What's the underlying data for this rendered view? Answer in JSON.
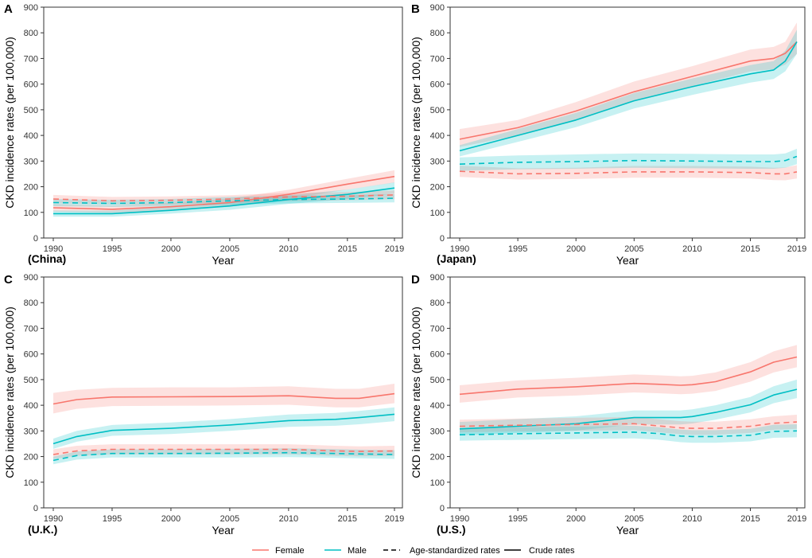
{
  "figure": {
    "y_axis_label": "CKD incidence rates (per 100,000)",
    "x_axis_label": "Year",
    "colors": {
      "female": "#F8766D",
      "male": "#00BFC4",
      "axis": "#333333"
    }
  },
  "legend": {
    "female": "Female",
    "male": "Male",
    "age_standardized": "Age-standardized rates",
    "crude": "Crude rates"
  },
  "chart_data": [
    {
      "type": "line",
      "panel": "A",
      "country": "(China)",
      "xlabel": "Year",
      "ylabel": "CKD incidence rates (per 100,000)",
      "xlim": [
        1990,
        2019
      ],
      "ylim": [
        0,
        900
      ],
      "x_ticks": [
        1990,
        1995,
        2000,
        2005,
        2010,
        2015,
        2019
      ],
      "y_ticks": [
        0,
        100,
        200,
        300,
        400,
        500,
        600,
        700,
        800,
        900
      ],
      "years": [
        1990,
        1995,
        2000,
        2005,
        2010,
        2015,
        2019
      ],
      "series": [
        {
          "name": "Female crude",
          "sex": "female",
          "rate": "crude",
          "values": [
            118,
            112,
            122,
            138,
            170,
            210,
            240
          ],
          "lower": [
            103,
            98,
            107,
            122,
            152,
            189,
            216
          ],
          "upper": [
            133,
            127,
            137,
            154,
            188,
            231,
            264
          ]
        },
        {
          "name": "Male crude",
          "sex": "male",
          "rate": "crude",
          "values": [
            95,
            95,
            108,
            125,
            150,
            170,
            195
          ],
          "lower": [
            83,
            83,
            95,
            110,
            133,
            151,
            173
          ],
          "upper": [
            107,
            107,
            121,
            140,
            167,
            189,
            217
          ]
        },
        {
          "name": "Female age-standardized",
          "sex": "female",
          "rate": "age-standardized",
          "values": [
            152,
            145,
            147,
            152,
            160,
            163,
            168
          ],
          "lower": [
            136,
            130,
            132,
            137,
            144,
            147,
            151
          ],
          "upper": [
            168,
            160,
            162,
            167,
            176,
            179,
            185
          ]
        },
        {
          "name": "Male age-standardized",
          "sex": "male",
          "rate": "age-standardized",
          "values": [
            138,
            135,
            138,
            145,
            150,
            152,
            155
          ],
          "lower": [
            124,
            121,
            124,
            130,
            135,
            137,
            139
          ],
          "upper": [
            152,
            149,
            152,
            160,
            165,
            167,
            171
          ]
        }
      ]
    },
    {
      "type": "line",
      "panel": "B",
      "country": "(Japan)",
      "xlabel": "Year",
      "ylabel": "CKD incidence rates (per 100,000)",
      "xlim": [
        1990,
        2019
      ],
      "ylim": [
        0,
        900
      ],
      "x_ticks": [
        1990,
        1995,
        2000,
        2005,
        2010,
        2015,
        2019
      ],
      "y_ticks": [
        0,
        100,
        200,
        300,
        400,
        500,
        600,
        700,
        800,
        900
      ],
      "years": [
        1990,
        1995,
        2000,
        2005,
        2010,
        2015,
        2017,
        2018,
        2019
      ],
      "series": [
        {
          "name": "Female crude",
          "sex": "female",
          "rate": "crude",
          "values": [
            385,
            430,
            495,
            570,
            630,
            690,
            700,
            720,
            765
          ],
          "lower": [
            355,
            400,
            462,
            535,
            592,
            650,
            658,
            676,
            718
          ],
          "upper": [
            425,
            460,
            530,
            610,
            670,
            735,
            745,
            765,
            840
          ]
        },
        {
          "name": "Male crude",
          "sex": "male",
          "rate": "crude",
          "values": [
            340,
            400,
            460,
            535,
            590,
            640,
            655,
            690,
            765
          ],
          "lower": [
            318,
            375,
            432,
            505,
            558,
            606,
            620,
            650,
            718
          ],
          "upper": [
            362,
            425,
            488,
            565,
            622,
            674,
            690,
            730,
            812
          ]
        },
        {
          "name": "Female age-standardized",
          "sex": "female",
          "rate": "age-standardized",
          "values": [
            260,
            250,
            252,
            258,
            258,
            255,
            250,
            250,
            258
          ],
          "lower": [
            238,
            228,
            230,
            235,
            235,
            232,
            226,
            225,
            232
          ],
          "upper": [
            282,
            272,
            274,
            281,
            281,
            278,
            274,
            275,
            284
          ]
        },
        {
          "name": "Male age-standardized",
          "sex": "male",
          "rate": "age-standardized",
          "values": [
            288,
            295,
            298,
            302,
            300,
            298,
            298,
            302,
            318
          ],
          "lower": [
            262,
            268,
            270,
            274,
            272,
            270,
            270,
            274,
            288
          ],
          "upper": [
            314,
            322,
            326,
            330,
            328,
            326,
            326,
            330,
            348
          ]
        }
      ]
    },
    {
      "type": "line",
      "panel": "C",
      "country": "(U.K.)",
      "xlabel": "Year",
      "ylabel": "CKD incidence rates (per 100,000)",
      "xlim": [
        1990,
        2019
      ],
      "ylim": [
        0,
        900
      ],
      "x_ticks": [
        1990,
        1995,
        2000,
        2005,
        2010,
        2015,
        2019
      ],
      "y_ticks": [
        0,
        100,
        200,
        300,
        400,
        500,
        600,
        700,
        800,
        900
      ],
      "years": [
        1990,
        1992,
        1995,
        2000,
        2005,
        2010,
        2014,
        2016,
        2019
      ],
      "series": [
        {
          "name": "Female crude",
          "sex": "female",
          "rate": "crude",
          "values": [
            405,
            422,
            432,
            433,
            434,
            437,
            427,
            427,
            445
          ],
          "lower": [
            368,
            386,
            397,
            398,
            399,
            402,
            392,
            392,
            408
          ],
          "upper": [
            448,
            460,
            468,
            470,
            470,
            474,
            464,
            464,
            484
          ]
        },
        {
          "name": "Male crude",
          "sex": "male",
          "rate": "crude",
          "values": [
            250,
            278,
            302,
            310,
            323,
            340,
            345,
            352,
            365
          ],
          "lower": [
            230,
            258,
            281,
            288,
            300,
            316,
            320,
            326,
            338
          ],
          "upper": [
            270,
            300,
            323,
            333,
            346,
            364,
            370,
            378,
            392
          ]
        },
        {
          "name": "Female age-standardized",
          "sex": "female",
          "rate": "age-standardized",
          "values": [
            208,
            222,
            228,
            228,
            228,
            228,
            222,
            220,
            222
          ],
          "lower": [
            190,
            203,
            209,
            209,
            209,
            209,
            203,
            201,
            203
          ],
          "upper": [
            228,
            242,
            248,
            248,
            248,
            248,
            242,
            240,
            242
          ]
        },
        {
          "name": "Male age-standardized",
          "sex": "male",
          "rate": "age-standardized",
          "values": [
            185,
            204,
            212,
            212,
            213,
            215,
            212,
            210,
            208
          ],
          "lower": [
            170,
            188,
            196,
            196,
            196,
            198,
            195,
            193,
            191
          ],
          "upper": [
            200,
            220,
            228,
            228,
            230,
            232,
            229,
            227,
            225
          ]
        }
      ]
    },
    {
      "type": "line",
      "panel": "D",
      "country": "(U.S.)",
      "xlabel": "Year",
      "ylabel": "CKD incidence rates (per 100,000)",
      "xlim": [
        1990,
        2019
      ],
      "ylim": [
        0,
        900
      ],
      "x_ticks": [
        1990,
        1995,
        2000,
        2005,
        2010,
        2015,
        2019
      ],
      "y_ticks": [
        0,
        100,
        200,
        300,
        400,
        500,
        600,
        700,
        800,
        900
      ],
      "years": [
        1990,
        1995,
        2000,
        2005,
        2007,
        2009,
        2010,
        2012,
        2015,
        2017,
        2019
      ],
      "series": [
        {
          "name": "Female crude",
          "sex": "female",
          "rate": "crude",
          "values": [
            443,
            463,
            472,
            485,
            482,
            478,
            480,
            492,
            530,
            568,
            588
          ],
          "lower": [
            410,
            430,
            438,
            450,
            447,
            443,
            445,
            456,
            492,
            528,
            548
          ],
          "upper": [
            478,
            497,
            507,
            520,
            517,
            513,
            515,
            528,
            568,
            610,
            635
          ]
        },
        {
          "name": "Male crude",
          "sex": "male",
          "rate": "crude",
          "values": [
            308,
            318,
            328,
            352,
            352,
            352,
            356,
            372,
            402,
            440,
            462
          ],
          "lower": [
            283,
            292,
            301,
            325,
            325,
            325,
            329,
            344,
            372,
            408,
            428
          ],
          "upper": [
            335,
            346,
            357,
            380,
            380,
            380,
            384,
            400,
            432,
            474,
            500
          ]
        },
        {
          "name": "Female age-standardized",
          "sex": "female",
          "rate": "age-standardized",
          "values": [
            318,
            322,
            325,
            328,
            320,
            312,
            310,
            310,
            318,
            330,
            335
          ],
          "lower": [
            294,
            298,
            300,
            303,
            295,
            287,
            285,
            285,
            292,
            304,
            308
          ],
          "upper": [
            344,
            348,
            351,
            354,
            346,
            338,
            336,
            336,
            345,
            357,
            363
          ]
        },
        {
          "name": "Male age-standardized",
          "sex": "male",
          "rate": "age-standardized",
          "values": [
            285,
            289,
            292,
            295,
            290,
            280,
            278,
            278,
            283,
            298,
            300
          ],
          "lower": [
            262,
            265,
            268,
            271,
            266,
            256,
            254,
            254,
            259,
            273,
            275
          ],
          "upper": [
            310,
            314,
            317,
            320,
            315,
            305,
            303,
            303,
            308,
            324,
            326
          ]
        }
      ]
    }
  ]
}
